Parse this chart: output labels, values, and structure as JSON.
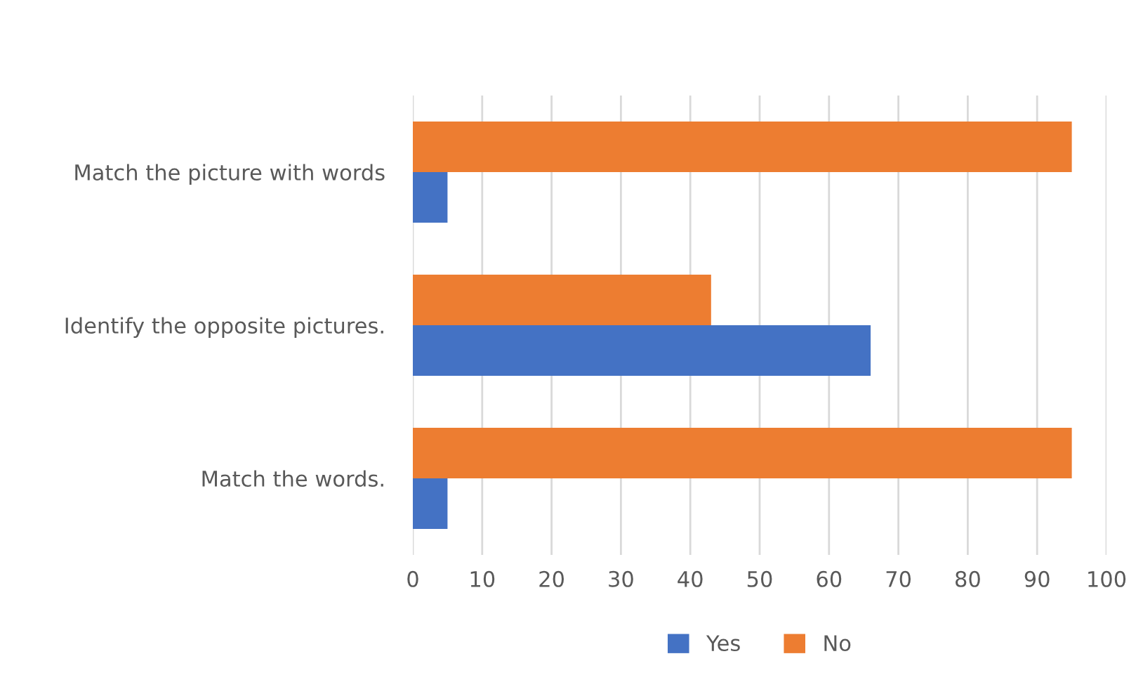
{
  "chart_data": {
    "type": "bar",
    "orientation": "horizontal",
    "categories": [
      "Match the picture with words",
      "Identify the opposite pictures.",
      "Match the words."
    ],
    "series": [
      {
        "name": "Yes",
        "color": "#4472c4",
        "values": [
          5,
          66,
          5
        ]
      },
      {
        "name": "No",
        "color": "#ed7d31",
        "values": [
          95,
          43,
          95
        ]
      }
    ],
    "xlim": [
      0,
      100
    ],
    "xticks": [
      0,
      10,
      20,
      30,
      40,
      50,
      60,
      70,
      80,
      90,
      100
    ],
    "grid": "x",
    "legend": "bottom"
  }
}
